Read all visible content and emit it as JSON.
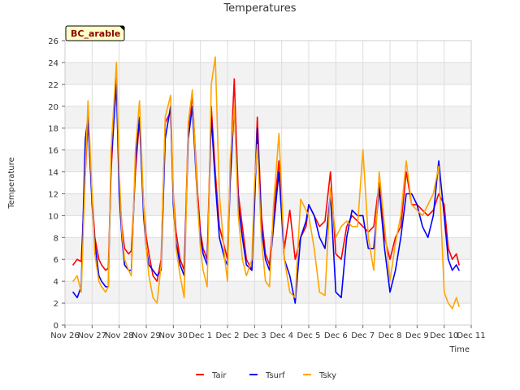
{
  "chart_data": {
    "type": "line",
    "title": "Temperatures",
    "xlabel": "Time",
    "ylabel": "Temperature",
    "badge": "BC_arable",
    "ylim": [
      0,
      26
    ],
    "xlim": [
      0,
      15
    ],
    "yticks": [
      0,
      2,
      4,
      6,
      8,
      10,
      12,
      14,
      16,
      18,
      20,
      22,
      24,
      26
    ],
    "xtick_labels": [
      "Nov 26",
      "Nov 27",
      "Nov 28",
      "Nov 29",
      "Nov 30",
      "Dec 1",
      "Dec 2",
      "Dec 3",
      "Dec 4",
      "Dec 5",
      "Dec 6",
      "Dec 7",
      "Dec 8",
      "Dec 9",
      "Dec 10",
      "Dec 11"
    ],
    "grid": true,
    "legend_position": "bottom-center",
    "x_unit": "days since Nov 26",
    "series": [
      {
        "name": "Tair",
        "color": "#ff0000",
        "x": [
          0.3,
          0.45,
          0.6,
          0.75,
          0.85,
          1.0,
          1.1,
          1.25,
          1.35,
          1.5,
          1.6,
          1.7,
          1.9,
          2.0,
          2.1,
          2.2,
          2.35,
          2.45,
          2.6,
          2.75,
          2.9,
          3.0,
          3.1,
          3.25,
          3.4,
          3.55,
          3.7,
          3.9,
          4.0,
          4.1,
          4.25,
          4.4,
          4.55,
          4.7,
          4.9,
          5.0,
          5.1,
          5.25,
          5.4,
          5.55,
          5.7,
          5.9,
          6.0,
          6.1,
          6.25,
          6.4,
          6.55,
          6.7,
          6.9,
          7.0,
          7.1,
          7.25,
          7.4,
          7.55,
          7.7,
          7.9,
          8.0,
          8.1,
          8.3,
          8.5,
          8.7,
          8.9,
          9.0,
          9.2,
          9.4,
          9.6,
          9.8,
          10.0,
          10.2,
          10.4,
          10.6,
          10.8,
          11.0,
          11.2,
          11.4,
          11.6,
          11.8,
          12.0,
          12.2,
          12.4,
          12.6,
          12.8,
          13.0,
          13.2,
          13.4,
          13.6,
          13.8,
          14.0,
          14.15,
          14.3,
          14.45,
          14.55
        ],
        "y": [
          5.5,
          6.0,
          5.8,
          14.0,
          18.5,
          12.0,
          8.0,
          6.0,
          5.5,
          5.0,
          5.2,
          14.0,
          23.0,
          13.0,
          9.0,
          7.0,
          6.5,
          6.8,
          14.0,
          18.8,
          11.0,
          8.0,
          6.5,
          4.5,
          4.0,
          6.0,
          18.5,
          19.5,
          12.0,
          8.5,
          6.0,
          5.0,
          18.0,
          21.0,
          12.0,
          8.5,
          7.0,
          6.0,
          20.0,
          14.0,
          9.0,
          7.0,
          6.0,
          14.0,
          22.5,
          12.0,
          9.0,
          6.0,
          5.0,
          12.0,
          19.0,
          10.0,
          6.5,
          5.5,
          10.0,
          15.0,
          11.0,
          7.0,
          10.5,
          6.0,
          8.0,
          9.0,
          11.0,
          10.0,
          9.0,
          9.5,
          14.0,
          6.5,
          6.0,
          9.0,
          10.0,
          9.5,
          9.0,
          8.5,
          9.0,
          13.0,
          8.0,
          6.0,
          8.0,
          9.0,
          14.0,
          11.0,
          11.0,
          10.5,
          10.0,
          10.5,
          12.0,
          11.0,
          7.0,
          6.0,
          6.5,
          5.5
        ]
      },
      {
        "name": "Tsurf",
        "color": "#0000ff",
        "x": [
          0.3,
          0.45,
          0.6,
          0.75,
          0.85,
          1.0,
          1.1,
          1.25,
          1.35,
          1.5,
          1.6,
          1.7,
          1.9,
          2.0,
          2.1,
          2.2,
          2.35,
          2.45,
          2.6,
          2.75,
          2.9,
          3.0,
          3.1,
          3.25,
          3.4,
          3.55,
          3.7,
          3.9,
          4.0,
          4.1,
          4.25,
          4.4,
          4.55,
          4.7,
          4.9,
          5.0,
          5.1,
          5.25,
          5.4,
          5.55,
          5.7,
          5.9,
          6.0,
          6.1,
          6.25,
          6.4,
          6.55,
          6.7,
          6.9,
          7.0,
          7.1,
          7.25,
          7.4,
          7.55,
          7.7,
          7.9,
          8.0,
          8.1,
          8.3,
          8.5,
          8.7,
          8.9,
          9.0,
          9.2,
          9.4,
          9.6,
          9.8,
          10.0,
          10.2,
          10.4,
          10.6,
          10.8,
          11.0,
          11.2,
          11.4,
          11.6,
          11.8,
          12.0,
          12.2,
          12.4,
          12.6,
          12.8,
          13.0,
          13.2,
          13.4,
          13.6,
          13.8,
          14.0,
          14.15,
          14.3,
          14.45,
          14.55
        ],
        "y": [
          3.0,
          2.5,
          3.5,
          17.0,
          19.0,
          11.0,
          7.5,
          4.5,
          4.0,
          3.5,
          3.5,
          15.0,
          22.0,
          12.0,
          8.0,
          5.5,
          5.0,
          5.0,
          15.0,
          19.0,
          10.0,
          7.0,
          5.5,
          5.0,
          4.5,
          5.0,
          17.0,
          20.0,
          11.0,
          7.5,
          5.5,
          4.5,
          17.0,
          20.0,
          11.0,
          8.0,
          6.5,
          5.5,
          19.0,
          13.0,
          8.0,
          6.0,
          5.5,
          13.0,
          20.0,
          11.0,
          8.0,
          5.5,
          5.0,
          11.0,
          18.0,
          9.0,
          6.0,
          5.0,
          9.0,
          14.0,
          10.0,
          6.0,
          4.5,
          2.0,
          8.0,
          9.5,
          11.0,
          10.0,
          8.0,
          7.0,
          12.0,
          3.0,
          2.5,
          8.0,
          10.5,
          10.0,
          10.0,
          7.0,
          7.0,
          12.5,
          7.0,
          3.0,
          5.0,
          8.0,
          12.0,
          12.0,
          11.0,
          9.0,
          8.0,
          10.0,
          15.0,
          10.0,
          6.0,
          5.0,
          5.5,
          5.0
        ]
      },
      {
        "name": "Tsky",
        "color": "#ffa500",
        "x": [
          0.3,
          0.45,
          0.6,
          0.75,
          0.85,
          1.0,
          1.1,
          1.25,
          1.35,
          1.5,
          1.6,
          1.7,
          1.9,
          2.0,
          2.1,
          2.2,
          2.35,
          2.45,
          2.6,
          2.75,
          2.9,
          3.0,
          3.1,
          3.25,
          3.4,
          3.55,
          3.7,
          3.9,
          4.0,
          4.1,
          4.25,
          4.4,
          4.55,
          4.7,
          4.9,
          5.0,
          5.1,
          5.25,
          5.4,
          5.55,
          5.7,
          5.9,
          6.0,
          6.1,
          6.25,
          6.4,
          6.55,
          6.7,
          6.9,
          7.0,
          7.1,
          7.25,
          7.4,
          7.55,
          7.7,
          7.9,
          8.0,
          8.1,
          8.3,
          8.5,
          8.7,
          8.9,
          9.0,
          9.2,
          9.4,
          9.6,
          9.8,
          10.0,
          10.2,
          10.4,
          10.6,
          10.8,
          11.0,
          11.2,
          11.4,
          11.6,
          11.8,
          12.0,
          12.2,
          12.4,
          12.6,
          12.8,
          13.0,
          13.2,
          13.4,
          13.6,
          13.8,
          14.0,
          14.15,
          14.3,
          14.45,
          14.55
        ],
        "y": [
          4.0,
          4.5,
          3.0,
          14.0,
          20.5,
          12.0,
          6.5,
          4.0,
          3.5,
          3.0,
          3.5,
          16.0,
          24.0,
          14.0,
          8.5,
          6.0,
          5.0,
          4.5,
          16.0,
          20.5,
          11.0,
          7.0,
          4.5,
          2.5,
          2.0,
          5.5,
          19.0,
          21.0,
          12.0,
          7.0,
          4.5,
          2.5,
          18.5,
          21.5,
          11.0,
          7.0,
          5.0,
          3.5,
          22.0,
          24.5,
          12.0,
          6.0,
          4.0,
          15.0,
          20.0,
          10.0,
          6.0,
          4.5,
          6.0,
          13.0,
          16.5,
          8.0,
          4.0,
          3.5,
          11.0,
          17.5,
          12.0,
          6.0,
          3.0,
          2.5,
          11.5,
          10.5,
          10.0,
          7.0,
          3.0,
          2.7,
          12.5,
          8.0,
          9.0,
          9.5,
          9.0,
          9.0,
          16.0,
          8.0,
          5.0,
          14.0,
          9.0,
          4.0,
          7.5,
          10.0,
          15.0,
          11.0,
          10.5,
          10.0,
          11.0,
          12.0,
          14.5,
          3.0,
          2.0,
          1.5,
          2.5,
          1.7
        ]
      }
    ]
  }
}
